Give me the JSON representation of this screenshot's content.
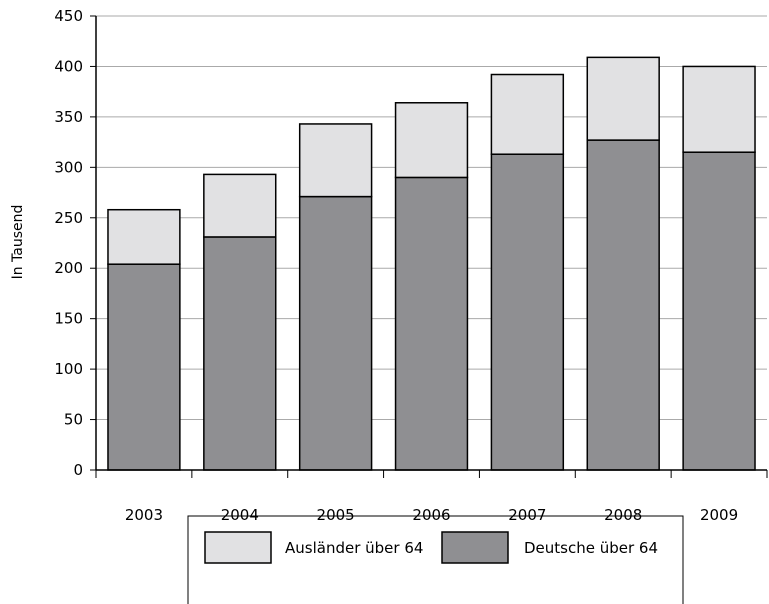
{
  "chart_data": {
    "type": "bar",
    "stacked": true,
    "categories": [
      "2003",
      "2004",
      "2005",
      "2006",
      "2007",
      "2008",
      "2009"
    ],
    "series": [
      {
        "name": "Deutsche über 64",
        "values": [
          204,
          231,
          271,
          290,
          313,
          327,
          315
        ],
        "color": "#8f8f92"
      },
      {
        "name": "Ausländer über 64",
        "values": [
          54,
          62,
          72,
          74,
          79,
          82,
          85
        ],
        "color": "#e1e1e3"
      }
    ],
    "title": "",
    "xlabel": "",
    "ylabel": "In Tausend",
    "ylim": [
      0,
      450
    ],
    "yticks": [
      0,
      50,
      100,
      150,
      200,
      250,
      300,
      350,
      400,
      450
    ],
    "grid": true,
    "legend_placement": "bottom",
    "legend_order": [
      "Ausländer über 64",
      "Deutsche über 64"
    ]
  }
}
